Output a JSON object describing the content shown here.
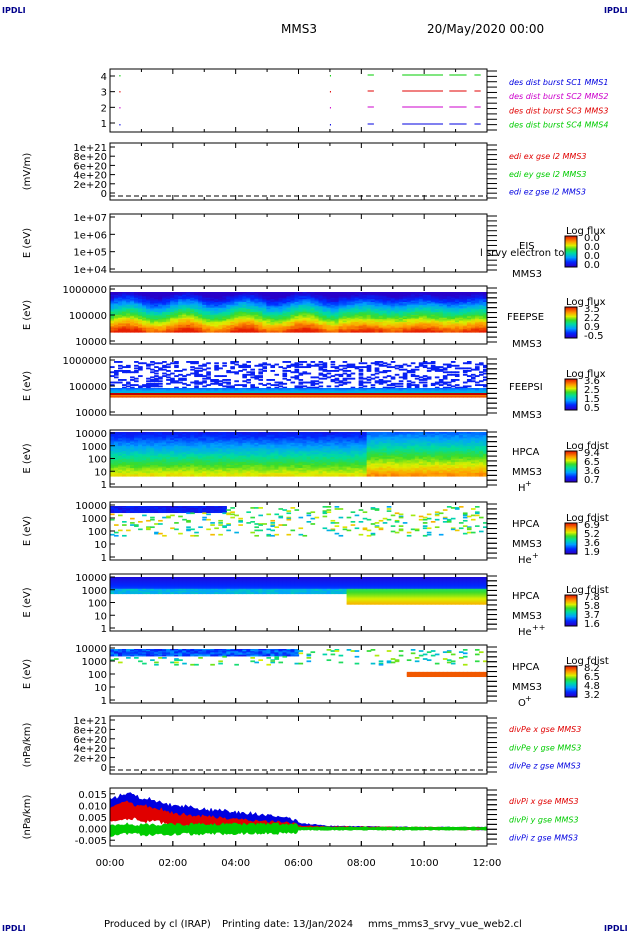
{
  "header": {
    "corner_tl": "IPDLI",
    "corner_tr": "IPDLI",
    "corner_bl": "IPDLI",
    "corner_br": "IPDLI",
    "mission": "MMS3",
    "datetime": "20/May/2020 00:00"
  },
  "footer": {
    "produced_by": "Produced by cl (IRAP)",
    "printing_date": "Printing date: 13/Jan/2024",
    "filename": "mms_mms3_srvy_vue_web2.cl"
  },
  "x_axis": {
    "ticks": [
      "00:00",
      "02:00",
      "04:00",
      "06:00",
      "08:00",
      "10:00",
      "12:00"
    ]
  },
  "colors": {
    "red": "#e00000",
    "green": "#00cc00",
    "blue": "#0000e0",
    "magenta": "#cc00cc"
  },
  "chart_data": [
    {
      "type": "line",
      "panel": "burst",
      "ylim": [
        0.5,
        4.5
      ],
      "yticks": [
        "4",
        "3",
        "2",
        "1"
      ],
      "legend": [
        {
          "label": "des dist burst SC1 MMS1",
          "color": "#0000e0"
        },
        {
          "label": "des dist burst SC2 MMS2",
          "color": "#cc00cc"
        },
        {
          "label": "des dist burst SC3 MMS3",
          "color": "#e00000"
        },
        {
          "label": "des dist burst SC4 MMS4",
          "color": "#00cc00"
        }
      ],
      "intervals_hours": [
        [
          8.2,
          8.4
        ],
        [
          9.3,
          10.6
        ],
        [
          10.8,
          11.35
        ],
        [
          11.6,
          11.8
        ]
      ]
    },
    {
      "type": "line",
      "panel": "edi",
      "ylabel": "(mV/m)",
      "yticks": [
        "1e+21",
        "8e+20",
        "6e+20",
        "4e+20",
        "2e+20",
        "0"
      ],
      "legend": [
        {
          "label": "edi ex gse l2 MMS3",
          "color": "#e00000"
        },
        {
          "label": "edi ey gse l2 MMS3",
          "color": "#00cc00"
        },
        {
          "label": "edi ez gse l2 MMS3",
          "color": "#0000e0"
        }
      ]
    },
    {
      "type": "heatmap",
      "panel": "eis",
      "ylabel": "E (eV)",
      "yticks": [
        "1e+07",
        "1e+06",
        "1e+05",
        "1e+04"
      ],
      "instrument": "EIS",
      "species": "MMS3",
      "overlay_text": "l srvy electron to",
      "colorbar_title": "Log flux",
      "colorbar_ticks": [
        "0.0",
        "0.0",
        "0.0",
        "0.0"
      ]
    },
    {
      "type": "heatmap",
      "panel": "feepse",
      "ylabel": "E (eV)",
      "yticks": [
        "1000000",
        "100000",
        "10000"
      ],
      "instrument": "FEEPSE",
      "species": "MMS3",
      "colorbar_title": "Log flux",
      "colorbar_ticks": [
        "3.5",
        "2.2",
        "0.9",
        "-0.5"
      ]
    },
    {
      "type": "heatmap",
      "panel": "feepsi",
      "ylabel": "E (eV)",
      "yticks": [
        "1000000",
        "100000",
        "10000"
      ],
      "instrument": "FEEPSI",
      "species": "MMS3",
      "colorbar_title": "Log flux",
      "colorbar_ticks": [
        "3.6",
        "2.5",
        "1.5",
        "0.5"
      ]
    },
    {
      "type": "heatmap",
      "panel": "hpca_h",
      "ylabel": "E (eV)",
      "yticks": [
        "10000",
        "1000",
        "100",
        "10",
        "1"
      ],
      "instrument": "HPCA",
      "species": "MMS3",
      "ion": "H",
      "ion_charge": "+",
      "colorbar_title": "Log fdist",
      "colorbar_ticks": [
        "9.4",
        "6.5",
        "3.6",
        "0.7"
      ]
    },
    {
      "type": "heatmap",
      "panel": "hpca_he1",
      "ylabel": "E (eV)",
      "yticks": [
        "10000",
        "1000",
        "100",
        "10",
        "1"
      ],
      "instrument": "HPCA",
      "species": "MMS3",
      "ion": "He",
      "ion_charge": "+",
      "colorbar_title": "Log fdist",
      "colorbar_ticks": [
        "6.9",
        "5.2",
        "3.6",
        "1.9"
      ]
    },
    {
      "type": "heatmap",
      "panel": "hpca_he2",
      "ylabel": "E (eV)",
      "yticks": [
        "10000",
        "1000",
        "100",
        "10",
        "1"
      ],
      "instrument": "HPCA",
      "species": "MMS3",
      "ion": "He",
      "ion_charge": "++",
      "colorbar_title": "Log fdist",
      "colorbar_ticks": [
        "7.8",
        "5.8",
        "3.7",
        "1.6"
      ]
    },
    {
      "type": "heatmap",
      "panel": "hpca_o",
      "ylabel": "E (eV)",
      "yticks": [
        "10000",
        "1000",
        "100",
        "10",
        "1"
      ],
      "instrument": "HPCA",
      "species": "MMS3",
      "ion": "O",
      "ion_charge": "+",
      "colorbar_title": "Log fdist",
      "colorbar_ticks": [
        "8.2",
        "6.5",
        "4.8",
        "3.2"
      ]
    },
    {
      "type": "line",
      "panel": "divpe",
      "ylabel": "(nPa/km)",
      "yticks": [
        "1e+21",
        "8e+20",
        "6e+20",
        "4e+20",
        "2e+20",
        "0"
      ],
      "legend": [
        {
          "label": "divPe x gse MMS3",
          "color": "#e00000"
        },
        {
          "label": "divPe y gse MMS3",
          "color": "#00cc00"
        },
        {
          "label": "divPe z gse MMS3",
          "color": "#0000e0"
        }
      ]
    },
    {
      "type": "line",
      "panel": "divpi",
      "ylabel": "(nPa/km)",
      "ylim": [
        -0.0075,
        0.0175
      ],
      "yticks": [
        "0.015",
        "0.010",
        "0.005",
        "0.000",
        "-0.005"
      ],
      "legend": [
        {
          "label": "divPi x gse MMS3",
          "color": "#e00000"
        },
        {
          "label": "divPi y gse MMS3",
          "color": "#00cc00"
        },
        {
          "label": "divPi z gse MMS3",
          "color": "#0000e0"
        }
      ],
      "series": [
        {
          "name": "divPi x gse MMS3",
          "x_hours": [
            0,
            0.5,
            1,
            1.5,
            2,
            3,
            4,
            5,
            6,
            7,
            8,
            9,
            10,
            11,
            12
          ],
          "values": [
            0.006,
            0.008,
            0.0065,
            0.006,
            0.004,
            0.003,
            0.002,
            0.0012,
            0.0006,
            0.0003,
            0.0002,
            0.0001,
            0.0001,
            0.0,
            0.0
          ]
        },
        {
          "name": "divPi y gse MMS3",
          "x_hours": [
            0,
            0.5,
            1,
            1.5,
            2,
            3,
            4,
            5,
            6,
            7,
            8,
            9,
            10,
            11,
            12
          ],
          "values": [
            -0.001,
            0.0,
            -0.0005,
            -0.0005,
            -0.0003,
            -0.0002,
            -0.0001,
            0.0,
            0.0,
            0.0,
            0.0,
            0.0,
            0.0,
            0.0,
            0.0
          ]
        },
        {
          "name": "divPi z gse MMS3",
          "x_hours": [
            0,
            0.5,
            1,
            1.5,
            2,
            3,
            4,
            5,
            6,
            7,
            8,
            9,
            10,
            11,
            12
          ],
          "values": [
            0.009,
            0.011,
            0.009,
            0.0085,
            0.007,
            0.0055,
            0.0045,
            0.0035,
            0.0015,
            0.0005,
            0.0003,
            0.0002,
            0.0001,
            0.0001,
            0.0
          ]
        }
      ]
    }
  ]
}
